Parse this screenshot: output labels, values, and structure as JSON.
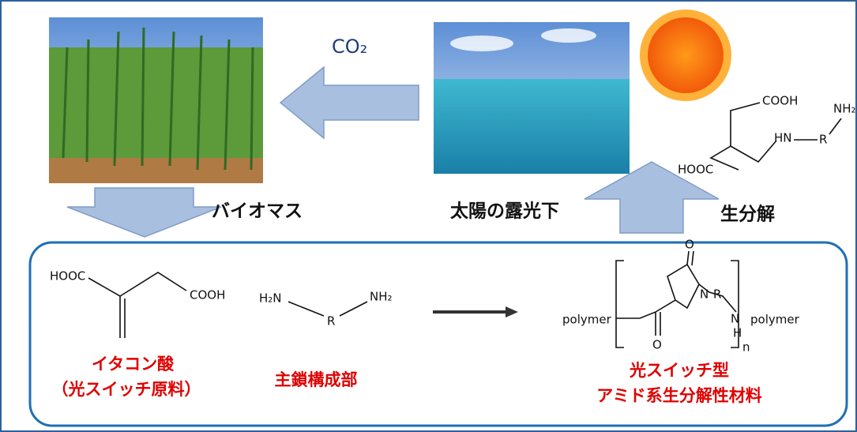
{
  "labels": {
    "co2": "CO₂",
    "biomass": "バイオマス",
    "sunlight": "太陽の露光下",
    "biodegradation": "生分解"
  },
  "degradation_product": {
    "cooh": "COOH",
    "hooc": "HOOC",
    "hn": "HN",
    "r": "R",
    "nh2": "NH₂"
  },
  "itaconic_acid": {
    "hooc": "HOOC",
    "cooh": "COOH",
    "name": "イタコン酸",
    "note": "（光スイッチ原料）"
  },
  "backbone": {
    "h2n": "H₂N",
    "nh2": "NH₂",
    "r": "R",
    "name": "主鎖構成部"
  },
  "product": {
    "polymer_left": "polymer",
    "polymer_right": "polymer",
    "o_ring": "O",
    "o_amide": "O",
    "n_ring": "N",
    "r": "R",
    "n_amine": "N",
    "h": "H",
    "n": "n",
    "name_line1": "光スイッチ型",
    "name_line2": "アミド系生分解性材料"
  }
}
